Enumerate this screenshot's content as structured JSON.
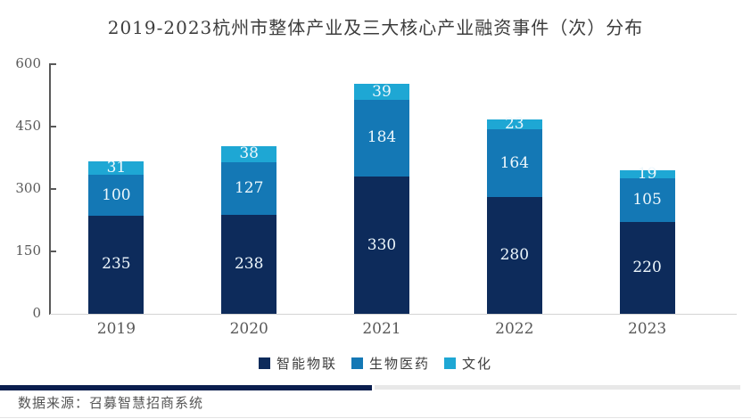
{
  "title": "2019-2023杭州市整体产业及三大核心产业融资事件（次）分布",
  "source_note": "数据来源：召募智慧招商系统",
  "chart_data": {
    "type": "bar",
    "stacked": true,
    "title": "2019-2023杭州市整体产业及三大核心产业融资事件（次）分布",
    "categories": [
      "2019",
      "2020",
      "2021",
      "2022",
      "2023"
    ],
    "series": [
      {
        "name": "智能物联",
        "color": "#0d2b5b",
        "values": [
          235,
          238,
          330,
          280,
          220
        ]
      },
      {
        "name": "生物医药",
        "color": "#1478b5",
        "values": [
          100,
          127,
          184,
          164,
          105
        ]
      },
      {
        "name": "文化",
        "color": "#1ea7d4",
        "values": [
          31,
          38,
          39,
          23,
          19
        ]
      }
    ],
    "xlabel": "",
    "ylabel": "",
    "ylim": [
      0,
      600
    ],
    "yticks": [
      0,
      150,
      300,
      450,
      600
    ],
    "grid": false,
    "legend_position": "bottom",
    "value_labels": true,
    "axis_color": "#595959",
    "baseline_color": "#d4d4d4",
    "value_label_color": "#edf7fc",
    "tick_label_color": "#595959"
  },
  "footer": {
    "divider_navy_color": "#0a1e4e",
    "divider_gray_color": "#e8e8e8"
  }
}
